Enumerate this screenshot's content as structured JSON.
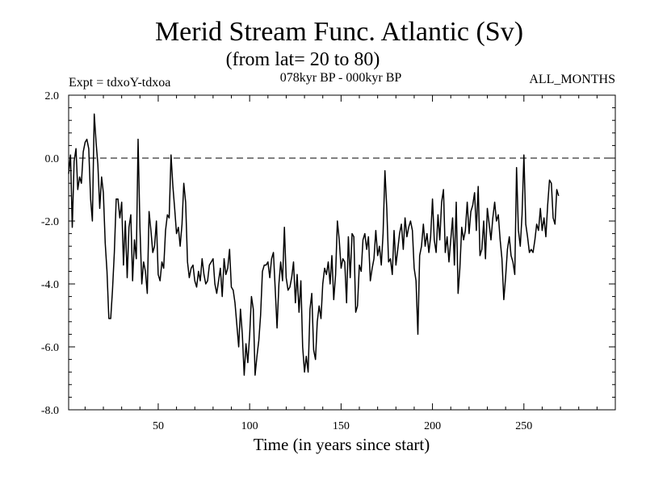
{
  "chart_data": {
    "type": "line",
    "title": "Merid Stream Func. Atlantic (Sv)",
    "subtitle": "(from lat= 20 to 80)",
    "annotations": {
      "left": "Expt = tdxoY-tdxoa",
      "center": "078kyr BP - 000kyr BP",
      "right": "ALL_MONTHS"
    },
    "xlabel": "Time (in years since start)",
    "ylabel": "",
    "xlim": [
      1,
      300
    ],
    "ylim": [
      -8,
      2
    ],
    "x_ticks": [
      50,
      100,
      150,
      200,
      250
    ],
    "y_ticks": [
      -8,
      -6,
      -4,
      -2,
      0,
      2
    ],
    "y_tick_labels": [
      "-8.0",
      "-6.0",
      "-4.0",
      "-2.0",
      "0.0",
      "2.0"
    ],
    "reference_line": {
      "y": 0,
      "style": "dashed"
    },
    "grid": false,
    "series": [
      {
        "x_start": 1,
        "x_step": 1,
        "values": [
          -0.5,
          0.1,
          -2.2,
          -0.1,
          0.3,
          -1.0,
          -0.6,
          -0.8,
          0.2,
          0.5,
          0.6,
          0.3,
          -1.3,
          -2.0,
          1.4,
          0.5,
          -0.2,
          -1.6,
          -0.6,
          -1.1,
          -2.7,
          -3.6,
          -5.1,
          -5.1,
          -4.2,
          -3.0,
          -1.3,
          -1.3,
          -1.9,
          -1.4,
          -3.4,
          -2.0,
          -3.8,
          -2.2,
          -1.8,
          -3.9,
          -2.6,
          -3.2,
          0.6,
          -2.2,
          -4.0,
          -3.3,
          -3.6,
          -4.3,
          -1.7,
          -2.3,
          -3.0,
          -2.8,
          -2.0,
          -3.7,
          -3.9,
          -3.3,
          -3.5,
          -2.3,
          -1.8,
          -1.9,
          0.1,
          -0.9,
          -1.6,
          -2.4,
          -2.2,
          -2.8,
          -2.1,
          -0.8,
          -1.4,
          -3.3,
          -3.8,
          -3.5,
          -3.4,
          -3.9,
          -4.1,
          -3.6,
          -3.9,
          -3.2,
          -3.7,
          -4.0,
          -3.9,
          -3.4,
          -3.3,
          -3.2,
          -4.0,
          -4.3,
          -3.9,
          -3.5,
          -4.4,
          -3.2,
          -3.7,
          -3.5,
          -2.9,
          -4.1,
          -4.2,
          -4.6,
          -5.3,
          -6.0,
          -4.8,
          -5.6,
          -6.9,
          -5.9,
          -6.5,
          -5.6,
          -4.4,
          -4.8,
          -6.9,
          -6.3,
          -5.8,
          -5.0,
          -3.6,
          -3.4,
          -3.4,
          -3.3,
          -3.8,
          -3.2,
          -3.0,
          -4.2,
          -5.4,
          -4.0,
          -3.3,
          -3.9,
          -2.2,
          -3.8,
          -4.2,
          -4.1,
          -3.8,
          -3.3,
          -4.6,
          -3.7,
          -4.9,
          -3.9,
          -6.0,
          -6.8,
          -6.3,
          -6.8,
          -4.8,
          -4.3,
          -6.1,
          -6.4,
          -5.2,
          -4.7,
          -5.1,
          -4.0,
          -3.5,
          -3.7,
          -3.3,
          -4.0,
          -3.1,
          -4.5,
          -3.7,
          -2.0,
          -2.6,
          -3.5,
          -3.2,
          -3.3,
          -4.6,
          -2.5,
          -3.8,
          -2.4,
          -2.5,
          -4.9,
          -4.7,
          -3.4,
          -3.6,
          -2.6,
          -2.4,
          -2.9,
          -2.5,
          -3.9,
          -3.5,
          -3.2,
          -2.3,
          -3.1,
          -2.8,
          -3.4,
          -2.4,
          -0.4,
          -1.6,
          -3.3,
          -3.2,
          -3.7,
          -2.3,
          -3.4,
          -2.9,
          -2.4,
          -2.1,
          -2.9,
          -1.9,
          -2.5,
          -2.2,
          -2.0,
          -2.3,
          -3.5,
          -3.9,
          -5.6,
          -3.1,
          -2.8,
          -2.1,
          -2.8,
          -2.4,
          -3.0,
          -2.5,
          -1.3,
          -2.6,
          -3.0,
          -1.8,
          -2.6,
          -1.4,
          -1.0,
          -3.0,
          -2.5,
          -3.3,
          -2.6,
          -1.9,
          -3.4,
          -1.4,
          -4.3,
          -3.5,
          -2.2,
          -2.6,
          -2.3,
          -1.4,
          -2.4,
          -1.7,
          -1.5,
          -1.1,
          -2.3,
          -0.9,
          -3.1,
          -2.9,
          -2.0,
          -3.2,
          -1.6,
          -2.1,
          -2.6,
          -1.9,
          -1.4,
          -2.0,
          -1.8,
          -2.6,
          -3.2,
          -4.5,
          -3.8,
          -2.9,
          -2.5,
          -3.1,
          -3.3,
          -3.7,
          -0.3,
          -2.3,
          -2.8,
          -1.8,
          0.1,
          -2.1,
          -2.5,
          -3.0,
          -2.9,
          -3.0,
          -2.6,
          -2.1,
          -2.3,
          -1.6,
          -2.3,
          -1.9,
          -2.5,
          -1.5,
          -0.7,
          -0.8,
          -1.9,
          -2.1,
          -1.0,
          -1.2
        ]
      }
    ]
  }
}
